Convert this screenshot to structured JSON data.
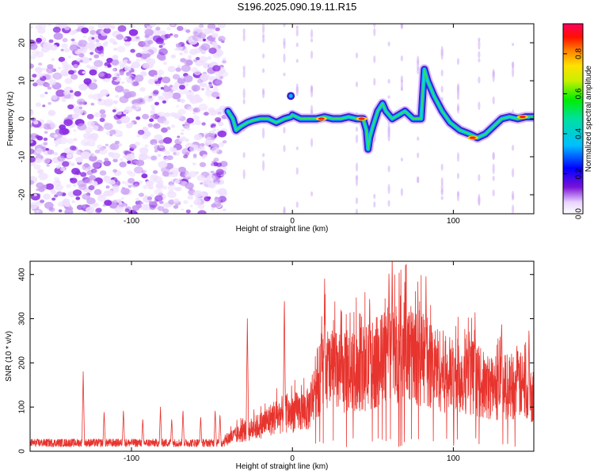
{
  "title": "S196.2025.090.19.11.R15",
  "chart_data": [
    {
      "type": "heatmap",
      "xlabel": "Height of straight line (km)",
      "ylabel": "Frequency (Hz)",
      "xlim": [
        -163,
        150
      ],
      "ylim": [
        -25,
        25
      ],
      "xticks": [
        -100,
        0,
        100
      ],
      "yticks": [
        -20,
        -10,
        0,
        10,
        20
      ],
      "noise_region_x": [
        -163,
        -42
      ],
      "colorbar": {
        "label": "Normalized spectral amplitude",
        "range": [
          0,
          0.95
        ],
        "ticks": [
          0.0,
          0.2,
          0.4,
          0.6,
          0.8
        ]
      },
      "ridge": {
        "x": [
          -40,
          -37,
          -35,
          -32,
          -28,
          -25,
          -20,
          -15,
          -10,
          -5,
          -1,
          0,
          5,
          10,
          15,
          20,
          25,
          30,
          35,
          40,
          44,
          46,
          47,
          48,
          50,
          53,
          56,
          58,
          62,
          66,
          70,
          75,
          80,
          82,
          84,
          88,
          93,
          98,
          104,
          110,
          115,
          120,
          125,
          130,
          135,
          140,
          145,
          150
        ],
        "y": [
          2,
          0,
          -3,
          -2,
          -1,
          -0.5,
          0,
          0,
          -1,
          0,
          0.5,
          1,
          0,
          0,
          0,
          0.5,
          0,
          0,
          0.5,
          0,
          0,
          -3,
          -8,
          -5,
          -2,
          2,
          4,
          2,
          0,
          1,
          2,
          0,
          0,
          13,
          10,
          6,
          2,
          -1,
          -3,
          -4,
          -5,
          -4,
          -2,
          0,
          0.5,
          0,
          0.5,
          0.5
        ]
      },
      "peaks": [
        {
          "x": 18,
          "y": 0
        },
        {
          "x": 43,
          "y": 0
        },
        {
          "x": 112,
          "y": -5
        },
        {
          "x": 143,
          "y": 0.5
        }
      ],
      "isolated_blob": {
        "x": -1,
        "y": 6
      }
    },
    {
      "type": "line",
      "xlabel": "Height of straight line (km)",
      "ylabel": "SNR (10 * v/v)",
      "xlim": [
        -163,
        150
      ],
      "ylim": [
        0,
        430
      ],
      "xticks": [
        -100,
        0,
        100
      ],
      "yticks": [
        0,
        100,
        200,
        300,
        400
      ],
      "color": "#e8342e",
      "baseline": 20,
      "spikes": [
        {
          "x": -130,
          "y": 180
        },
        {
          "x": -117,
          "y": 92
        },
        {
          "x": -105,
          "y": 95
        },
        {
          "x": -93,
          "y": 75
        },
        {
          "x": -82,
          "y": 100
        },
        {
          "x": -75,
          "y": 75
        },
        {
          "x": -68,
          "y": 95
        },
        {
          "x": -57,
          "y": 80
        },
        {
          "x": -48,
          "y": 95
        },
        {
          "x": -45,
          "y": 85
        },
        {
          "x": -28,
          "y": 300
        },
        {
          "x": -5,
          "y": 355
        },
        {
          "x": 18,
          "y": 280
        },
        {
          "x": 20,
          "y": 390
        },
        {
          "x": 48,
          "y": 360
        },
        {
          "x": 60,
          "y": 420
        },
        {
          "x": 62,
          "y": 440
        },
        {
          "x": 83,
          "y": 395
        },
        {
          "x": 110,
          "y": 270
        },
        {
          "x": 130,
          "y": 300
        },
        {
          "x": 147,
          "y": 285
        }
      ],
      "envelope": {
        "x": [
          -163,
          -45,
          -40,
          -30,
          -20,
          -10,
          0,
          10,
          14,
          20,
          30,
          40,
          50,
          60,
          70,
          80,
          90,
          100,
          110,
          120,
          130,
          140,
          150
        ],
        "y": [
          20,
          22,
          40,
          60,
          80,
          110,
          120,
          130,
          200,
          260,
          240,
          250,
          270,
          300,
          310,
          290,
          260,
          230,
          240,
          200,
          200,
          210,
          180
        ]
      }
    }
  ]
}
